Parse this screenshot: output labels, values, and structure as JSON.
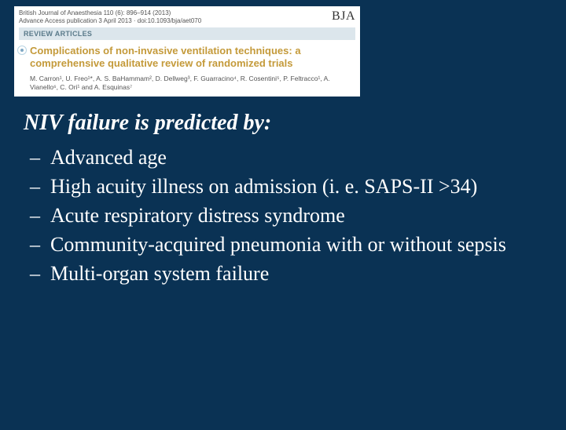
{
  "paper": {
    "meta_line1": "British Journal of Anaesthesia 110 (6): 896–914 (2013)",
    "meta_line2": "Advance Access publication 3 April 2013 · doi:10.1093/bja/aet070",
    "journal_abbrev": "BJA",
    "section_label": "REVIEW ARTICLES",
    "title": "Complications of non-invasive ventilation techniques: a comprehensive qualitative review of randomized trials",
    "authors": "M. Carron¹, U. Freo¹*, A. S. BaHammam², D. Dellweg³, F. Guarracino⁴, R. Cosentini⁵, P. Feltracco¹, A. Vianello⁶, C. Ori¹ and A. Esquinas⁷"
  },
  "slide": {
    "heading": "NIV failure is predicted by:",
    "bullets": [
      "Advanced age",
      "High acuity illness on admission (i. e. SAPS-II >34)",
      "Acute respiratory distress syndrome",
      "Community-acquired pneumonia with or without sepsis",
      "Multi-organ system failure"
    ]
  }
}
